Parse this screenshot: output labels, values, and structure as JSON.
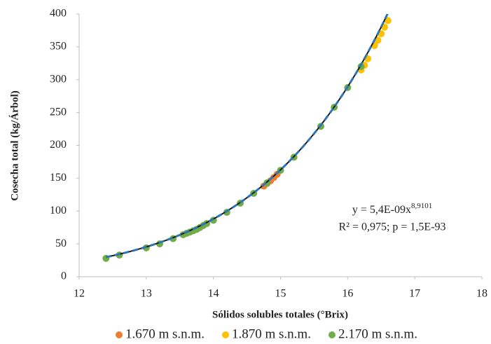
{
  "chart_data": {
    "type": "scatter",
    "x_label": "Sólidos solubles totales (°Brix)",
    "y_label": "Cosecha total (kg/Árbol)",
    "xlim": [
      12,
      18
    ],
    "xticks": [
      12,
      13,
      14,
      15,
      16,
      17,
      18
    ],
    "ylim": [
      0,
      400
    ],
    "yticks": [
      0,
      50,
      100,
      150,
      200,
      250,
      300,
      350,
      400
    ],
    "legend": "bottom",
    "series": [
      {
        "name": "1.670 m s.n.m.",
        "color": "#ed7d31",
        "x": [
          14.75,
          14.8,
          14.85,
          14.9,
          14.95
        ],
        "values": [
          138,
          142,
          146,
          151,
          156
        ]
      },
      {
        "name": "1.870 m s.n.m.",
        "color": "#ffc000",
        "x": [
          16.2,
          16.25,
          16.3,
          16.4,
          16.45,
          16.5,
          16.55,
          16.6
        ],
        "values": [
          315,
          322,
          332,
          352,
          360,
          370,
          380,
          390
        ]
      },
      {
        "name": "2.170 m s.n.m.",
        "color": "#70ad47",
        "x": [
          12.4,
          12.6,
          13.0,
          13.2,
          13.4,
          13.55,
          13.6,
          13.65,
          13.7,
          13.75,
          13.8,
          13.85,
          13.9,
          14.0,
          14.2,
          14.4,
          14.6,
          14.8,
          15.0,
          15.2,
          15.6,
          15.8,
          16.0,
          16.2
        ],
        "values": [
          28,
          33,
          44,
          50,
          58,
          64,
          66,
          68,
          70,
          72,
          75,
          78,
          81,
          86,
          98,
          112,
          127,
          143,
          162,
          182,
          229,
          258,
          288,
          320
        ]
      }
    ],
    "trendline": {
      "type": "power",
      "color": "#2e75b6",
      "coefficient": 5.4e-09,
      "exponent": 8.9101,
      "equation": "y = 5,4E-09x",
      "equation_exponent": "8,9101",
      "stats": "R² = 0,975; p = 1,5E-93"
    }
  }
}
